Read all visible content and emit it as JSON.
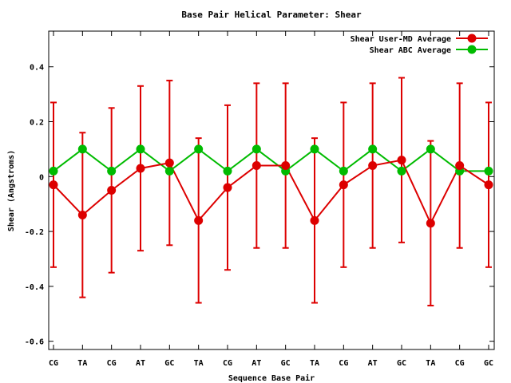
{
  "chart_data": {
    "type": "line",
    "title": "Base Pair Helical Parameter: Shear",
    "xlabel": "Sequence Base Pair",
    "ylabel": "Shear (Angstroms)",
    "categories": [
      "CG",
      "TA",
      "CG",
      "AT",
      "GC",
      "TA",
      "CG",
      "AT",
      "GC",
      "TA",
      "CG",
      "AT",
      "GC",
      "TA",
      "CG",
      "GC"
    ],
    "ylim": [
      -0.63,
      0.53
    ],
    "yticks": [
      -0.6,
      -0.4,
      -0.2,
      0,
      0.2,
      0.4
    ],
    "ytick_labels": [
      "-0.6",
      "-0.4",
      "-0.2",
      "0",
      "0.2",
      "0.4"
    ],
    "grid": false,
    "legend_position": "top-right",
    "series": [
      {
        "name": "Shear User-MD Average",
        "color": "#dd0000",
        "values": [
          -0.03,
          -0.14,
          -0.05,
          0.03,
          0.05,
          -0.16,
          -0.04,
          0.04,
          0.04,
          -0.16,
          -0.03,
          0.04,
          0.06,
          -0.17,
          0.04,
          -0.03
        ],
        "error_low": [
          -0.33,
          -0.44,
          -0.35,
          -0.27,
          -0.25,
          -0.46,
          -0.34,
          -0.26,
          -0.26,
          -0.46,
          -0.33,
          -0.26,
          -0.24,
          -0.47,
          -0.26,
          -0.33
        ],
        "error_high": [
          0.27,
          0.16,
          0.25,
          0.33,
          0.35,
          0.14,
          0.26,
          0.34,
          0.34,
          0.14,
          0.27,
          0.34,
          0.36,
          0.13,
          0.34,
          0.27
        ]
      },
      {
        "name": "Shear ABC Average",
        "color": "#00bb00",
        "values": [
          0.02,
          0.1,
          0.02,
          0.1,
          0.02,
          0.1,
          0.02,
          0.1,
          0.02,
          0.1,
          0.02,
          0.1,
          0.02,
          0.1,
          0.02,
          0.02
        ]
      }
    ]
  }
}
